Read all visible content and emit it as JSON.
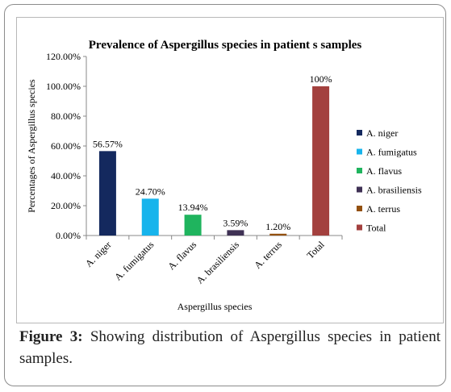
{
  "figure": {
    "caption_label": "Figure 3:",
    "caption_text": "Showing distribution of Aspergillus species in patient samples."
  },
  "chart_data": {
    "type": "bar",
    "title": "Prevalence of Aspergillus species in patient s samples",
    "xlabel": "Aspergillus species",
    "ylabel": "Percentages of Aspergillus species",
    "ylim": [
      0,
      120
    ],
    "yticks": [
      "0.00%",
      "20.00%",
      "40.00%",
      "60.00%",
      "80.00%",
      "100.00%",
      "120.00%"
    ],
    "grid": false,
    "legend_position": "right",
    "categories": [
      "A. niger",
      "A. fumigatus",
      "A. flavus",
      "A. brasiliensis",
      "A. terrus",
      "Total"
    ],
    "values": [
      56.57,
      24.7,
      13.94,
      3.59,
      1.2,
      100
    ],
    "data_labels": [
      "56.57%",
      "24.70%",
      "13.94%",
      "3.59%",
      "1.20%",
      "100%"
    ],
    "colors": [
      "#14295e",
      "#17b4ec",
      "#1fb45e",
      "#3f3154",
      "#93500f",
      "#a3403e"
    ],
    "legend": [
      "A. niger",
      "A. fumigatus",
      "A. flavus",
      "A. brasiliensis",
      "A. terrus",
      "Total"
    ]
  }
}
